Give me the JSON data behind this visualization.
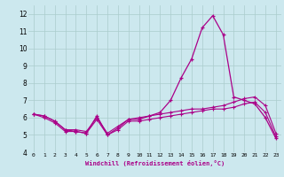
{
  "title": "",
  "xlabel": "Windchill (Refroidissement éolien,°C)",
  "background_color": "#cce8ee",
  "grid_color": "#aacccc",
  "line_color": "#aa0088",
  "hours": [
    0,
    1,
    2,
    3,
    4,
    5,
    6,
    7,
    8,
    9,
    10,
    11,
    12,
    13,
    14,
    15,
    16,
    17,
    18,
    19,
    20,
    21,
    22,
    23
  ],
  "temp": [
    6.2,
    6.1,
    5.8,
    5.3,
    5.2,
    5.1,
    6.1,
    5.0,
    5.4,
    5.9,
    5.9,
    6.1,
    6.3,
    7.0,
    8.3,
    9.4,
    11.2,
    11.9,
    10.8,
    7.2,
    7.0,
    6.8,
    6.0,
    4.8
  ],
  "windchill_low": [
    6.2,
    6.0,
    5.7,
    5.2,
    5.2,
    5.1,
    5.9,
    5.0,
    5.3,
    5.8,
    5.8,
    5.9,
    6.0,
    6.1,
    6.2,
    6.3,
    6.4,
    6.5,
    6.5,
    6.6,
    6.8,
    6.9,
    6.3,
    4.9
  ],
  "windchill_high": [
    6.2,
    6.1,
    5.8,
    5.3,
    5.3,
    5.2,
    6.0,
    5.1,
    5.5,
    5.9,
    6.0,
    6.1,
    6.2,
    6.3,
    6.4,
    6.5,
    6.5,
    6.6,
    6.7,
    6.9,
    7.1,
    7.2,
    6.7,
    5.1
  ],
  "ylim": [
    4,
    12.5
  ],
  "yticks": [
    4,
    5,
    6,
    7,
    8,
    9,
    10,
    11,
    12
  ]
}
